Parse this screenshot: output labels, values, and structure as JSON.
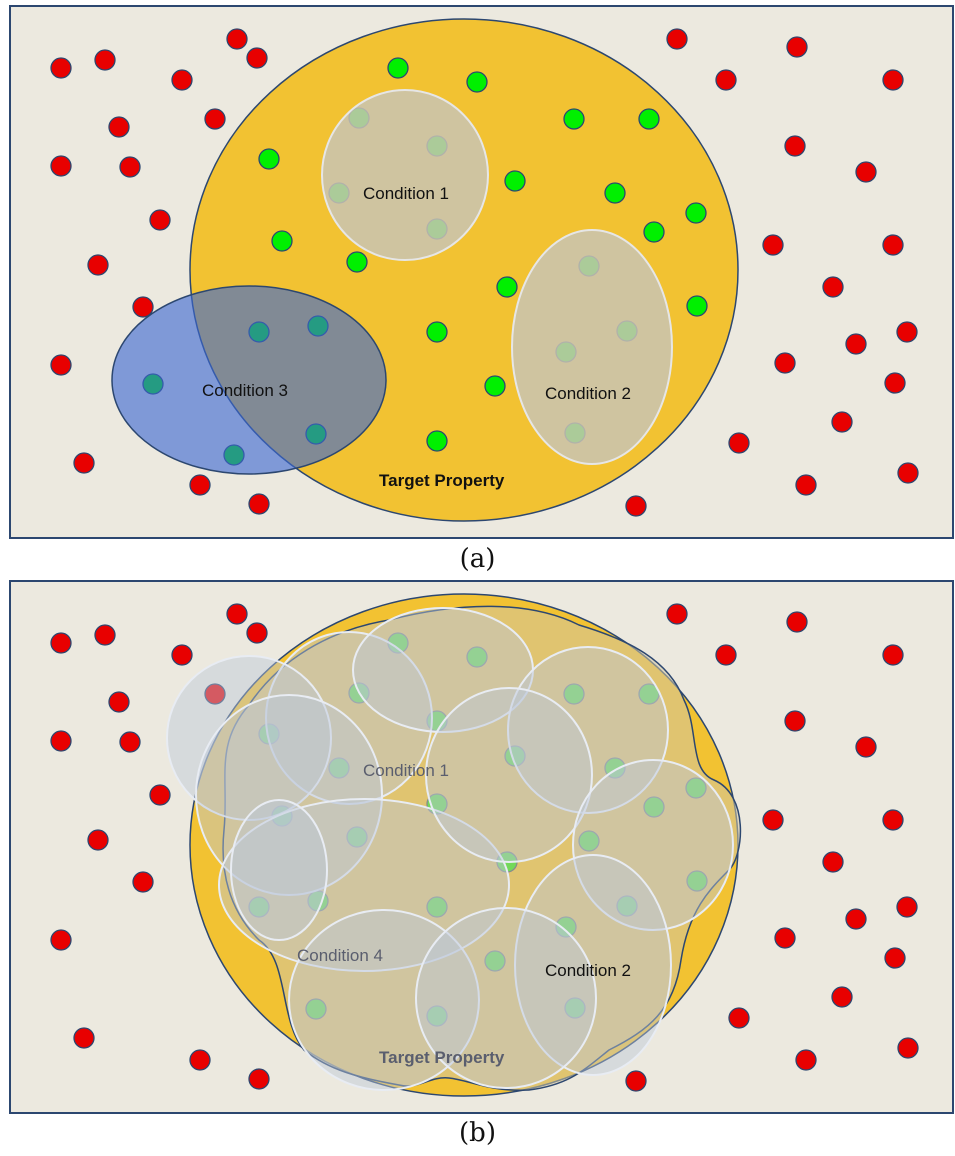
{
  "panel_a": {
    "caption": "(a)",
    "labels": {
      "condition1": "Condition 1",
      "condition2": "Condition 2",
      "condition3": "Condition 3",
      "target": "Target Property"
    }
  },
  "panel_b": {
    "caption": "(b)",
    "labels": {
      "condition1": "Condition 1",
      "condition2": "Condition 2",
      "condition4": "Condition 4",
      "target": "Target Property"
    }
  },
  "colors": {
    "background": "#ece9df",
    "target_fill": "#f2c232",
    "negative_point": "#e80000",
    "positive_point": "#00f000",
    "condition_fill": "#c9c4b4",
    "condition3_fill": "#6b8fd8",
    "outline": "#2c4770"
  }
}
